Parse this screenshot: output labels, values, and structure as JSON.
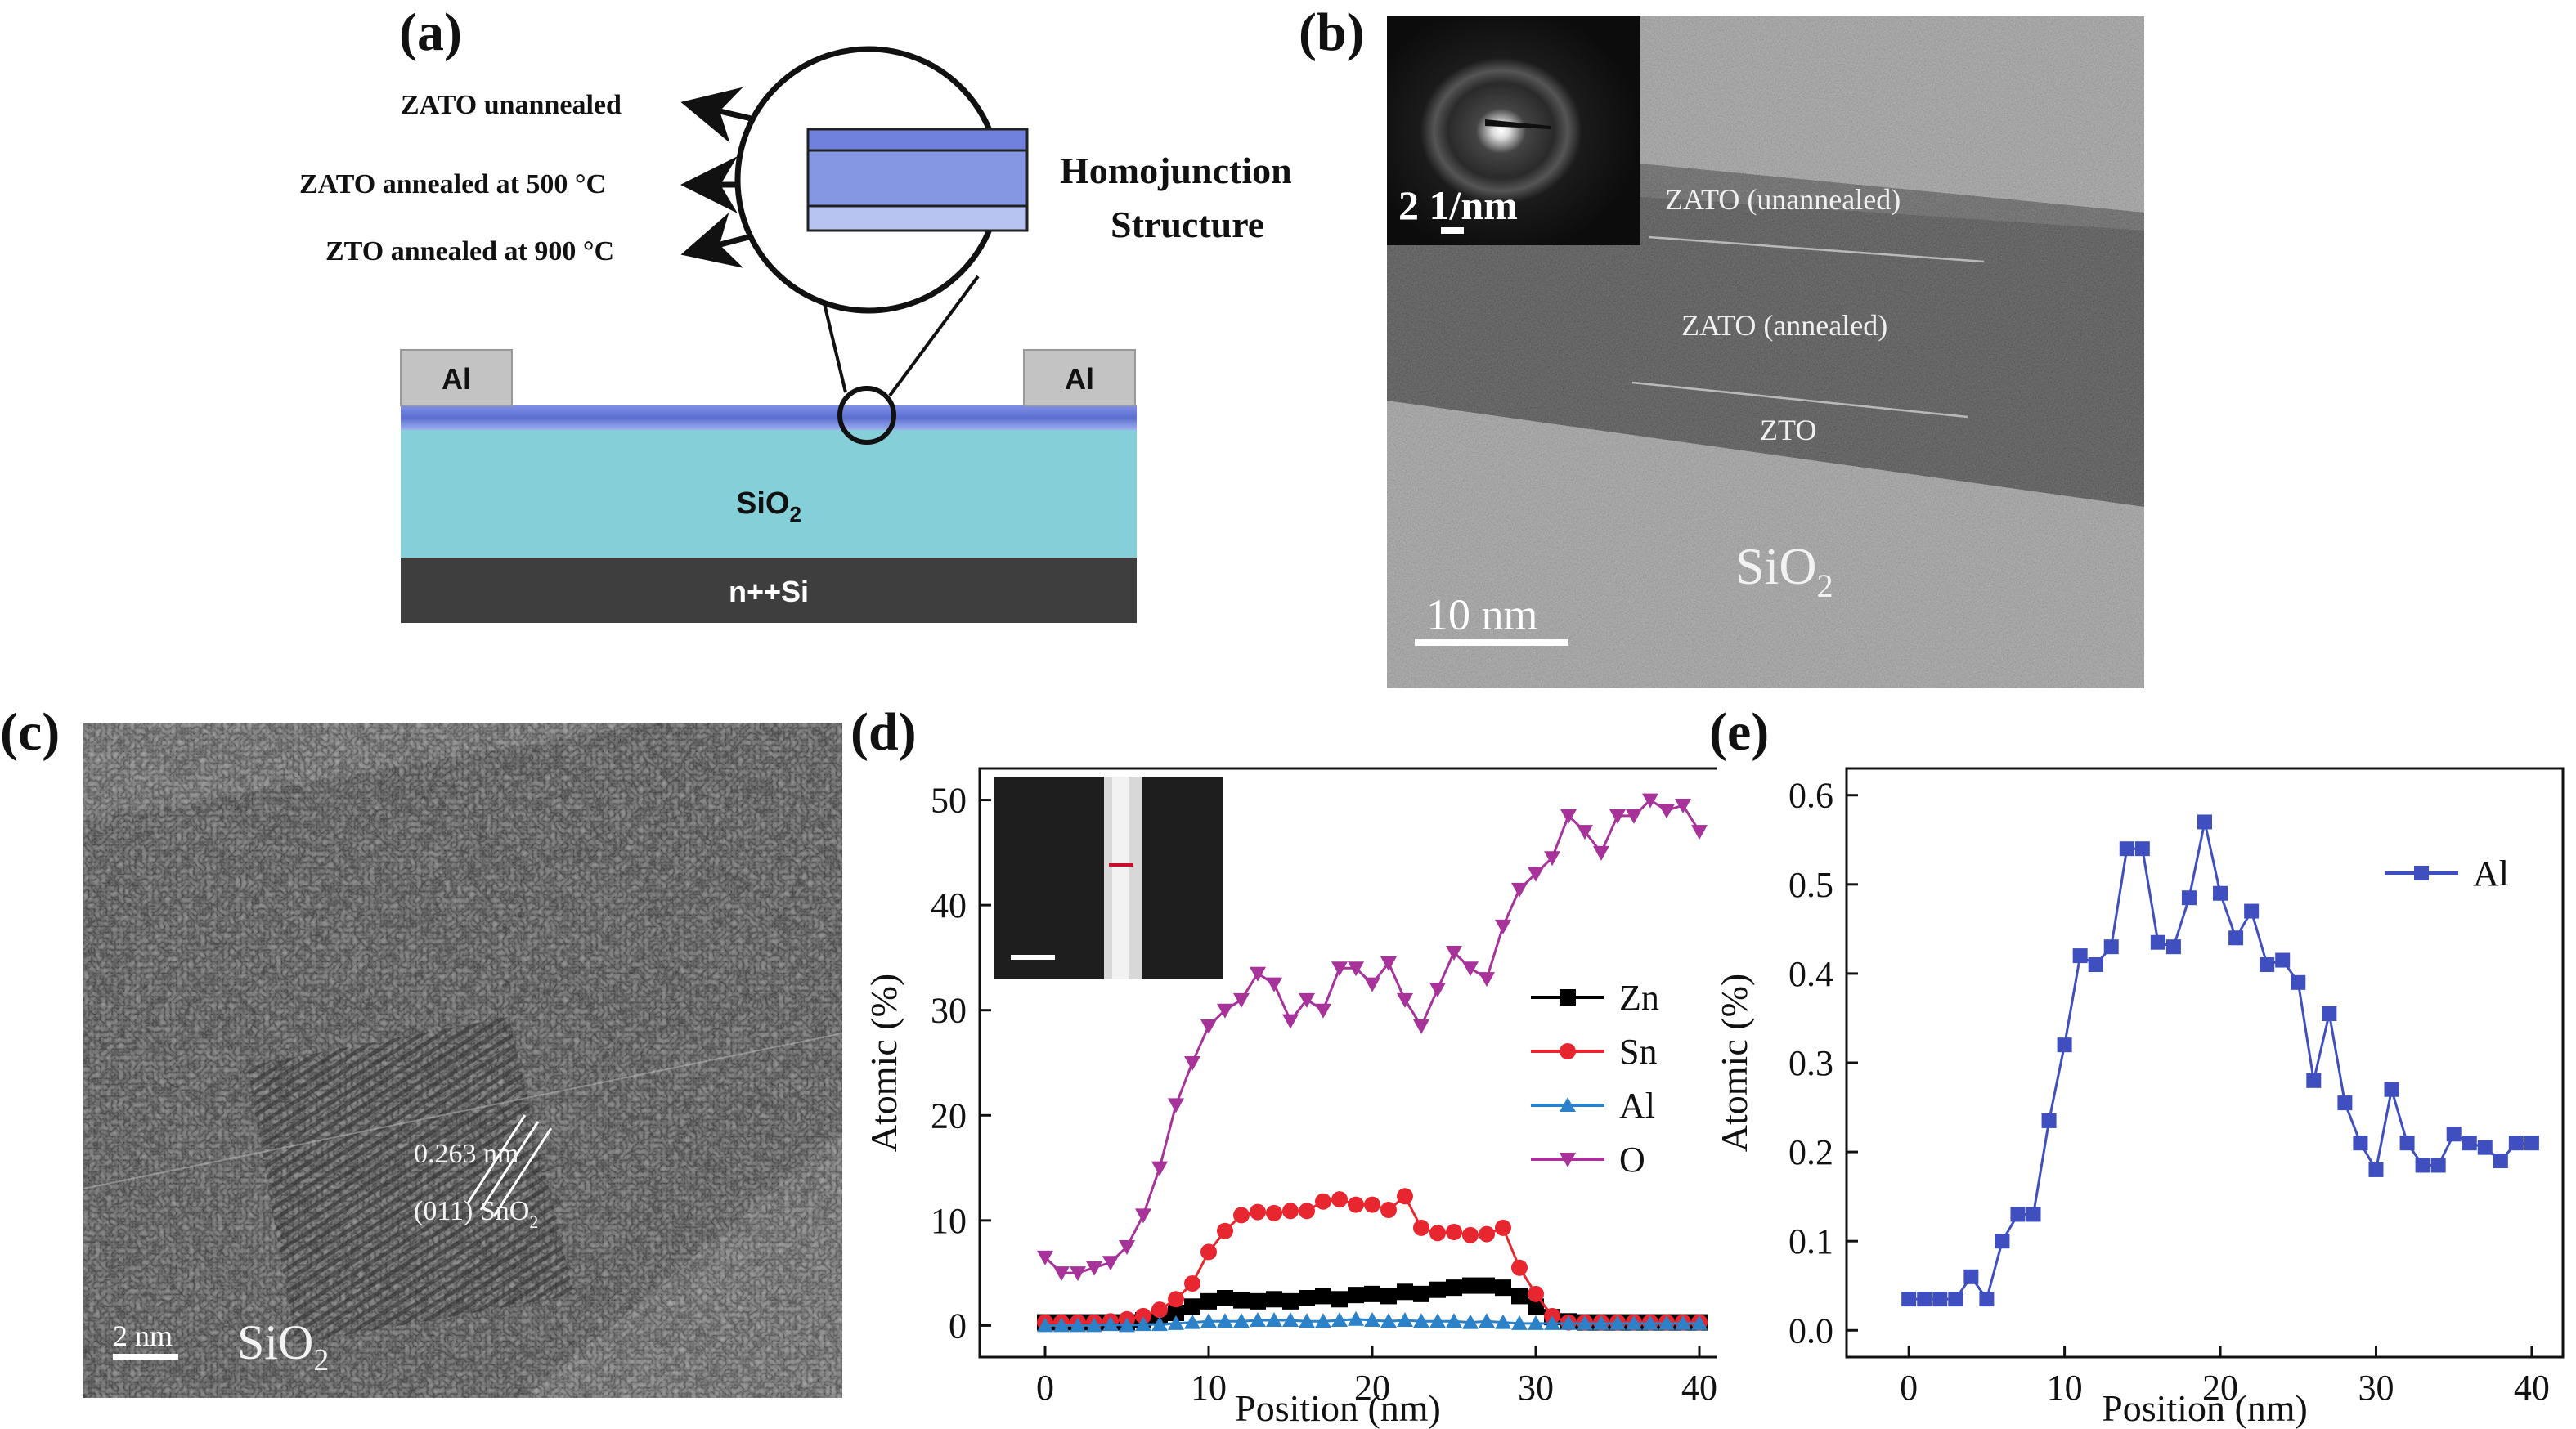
{
  "panel_labels": [
    "(a)",
    "(b)",
    "(c)",
    "(d)",
    "(e)"
  ],
  "panel_a": {
    "layer_labels": [
      "ZATO unannealed",
      "ZATO annealed at 500 °C",
      "ZTO annealed at 900 °C"
    ],
    "callout_line1": "Homojunction",
    "callout_line2": "Structure",
    "electrode_left": "Al",
    "electrode_right": "Al",
    "oxide_label": "SiO",
    "oxide_sub": "2",
    "substrate_label": "n++Si",
    "colors": {
      "oxide": "#85cfd8",
      "substrate": "#3e3e3e",
      "channel": "#5b6fd0",
      "electrode": "#c3c3c3"
    }
  },
  "panel_b": {
    "inset_scale": "2 1/nm",
    "layer_1": "ZATO  (unannealed)",
    "layer_2": "ZATO  (annealed)",
    "layer_3": "ZTO",
    "substrate": "SiO",
    "substrate_sub": "2",
    "scale_bar": "10  nm"
  },
  "panel_c": {
    "spacing_label": "0.263 nm",
    "plane_label": "(011) SnO",
    "plane_sub": "2",
    "scale_bar": "2 nm",
    "substrate": "SiO",
    "substrate_sub": "2"
  },
  "chart_data": [
    {
      "type": "line",
      "panel": "(d)",
      "xlabel": "Position (nm)",
      "ylabel": "Atomic (%)",
      "xlim": [
        -4,
        42
      ],
      "ylim": [
        -3,
        53
      ],
      "xticks": [
        0,
        10,
        20,
        30,
        40
      ],
      "yticks": [
        0,
        10,
        20,
        30,
        40,
        50
      ],
      "legend_position": "right",
      "x": [
        0,
        1,
        2,
        3,
        4,
        5,
        6,
        7,
        8,
        9,
        10,
        11,
        12,
        13,
        14,
        15,
        16,
        17,
        18,
        19,
        20,
        21,
        22,
        23,
        24,
        25,
        26,
        27,
        28,
        29,
        30,
        31,
        32,
        33,
        34,
        35,
        36,
        37,
        38,
        39,
        40
      ],
      "series": [
        {
          "name": "Zn",
          "color": "#000000",
          "marker": "square",
          "values": [
            0.3,
            0.3,
            0.3,
            0.3,
            0.3,
            0.3,
            0.5,
            0.8,
            1.2,
            1.8,
            2.3,
            2.6,
            2.4,
            2.3,
            2.5,
            2.3,
            2.6,
            2.8,
            2.5,
            2.9,
            3.0,
            2.8,
            3.2,
            3.0,
            3.4,
            3.6,
            3.8,
            3.8,
            3.6,
            2.8,
            1.8,
            0.8,
            0.4,
            0.3,
            0.3,
            0.3,
            0.3,
            0.3,
            0.3,
            0.3,
            0.3
          ]
        },
        {
          "name": "Sn",
          "color": "#e8262f",
          "marker": "circle",
          "values": [
            0.3,
            0.3,
            0.3,
            0.3,
            0.4,
            0.6,
            0.9,
            1.5,
            2.5,
            4.0,
            7.0,
            9.0,
            10.5,
            10.8,
            10.7,
            10.9,
            10.9,
            11.8,
            12.0,
            11.5,
            11.5,
            11.0,
            12.3,
            9.3,
            8.8,
            8.9,
            8.6,
            8.7,
            9.3,
            5.5,
            3.0,
            0.9,
            0.3,
            0.3,
            0.3,
            0.3,
            0.3,
            0.3,
            0.3,
            0.3,
            0.3
          ]
        },
        {
          "name": "Al",
          "color": "#2c82c9",
          "marker": "triangle-up",
          "values": [
            0.0,
            0.0,
            0.0,
            0.0,
            0.1,
            0.0,
            0.1,
            0.1,
            0.2,
            0.3,
            0.4,
            0.4,
            0.4,
            0.5,
            0.5,
            0.5,
            0.4,
            0.4,
            0.5,
            0.6,
            0.5,
            0.4,
            0.5,
            0.4,
            0.4,
            0.4,
            0.3,
            0.4,
            0.3,
            0.2,
            0.2,
            0.2,
            0.2,
            0.2,
            0.2,
            0.2,
            0.2,
            0.2,
            0.2,
            0.2,
            0.2
          ]
        },
        {
          "name": "O",
          "color": "#a6329a",
          "marker": "triangle-down",
          "values": [
            6.5,
            5.0,
            5.0,
            5.5,
            6.0,
            7.5,
            10.5,
            15.0,
            21.0,
            25.0,
            28.5,
            30.0,
            31.0,
            33.5,
            32.5,
            29.0,
            31.0,
            30.0,
            34.0,
            34.0,
            32.5,
            34.5,
            31.0,
            28.5,
            32.0,
            35.5,
            34.0,
            33.0,
            38.0,
            41.5,
            43.0,
            44.5,
            48.5,
            47.0,
            45.0,
            48.5,
            48.5,
            50.0,
            49.0,
            49.5,
            47.0
          ]
        }
      ],
      "inset_colors": {
        "background": "#1e1e1e",
        "bright_band": "#d8d8d8",
        "line_profile": "#c8102e"
      }
    },
    {
      "type": "line",
      "panel": "(e)",
      "xlabel": "Position (nm)",
      "ylabel": "Atomic (%)",
      "xlim": [
        -4,
        42
      ],
      "ylim": [
        -0.03,
        0.63
      ],
      "xticks": [
        0,
        10,
        20,
        30,
        40
      ],
      "yticks": [
        0.0,
        0.1,
        0.2,
        0.3,
        0.4,
        0.5,
        0.6
      ],
      "legend_position": "top-right",
      "x": [
        0,
        1,
        2,
        3,
        4,
        5,
        6,
        7,
        8,
        9,
        10,
        11,
        12,
        13,
        14,
        15,
        16,
        17,
        18,
        19,
        20,
        21,
        22,
        23,
        24,
        25,
        26,
        27,
        28,
        29,
        30,
        31,
        32,
        33,
        34,
        35,
        36,
        37,
        38,
        39,
        40
      ],
      "series": [
        {
          "name": "Al",
          "color": "#3f4fbf",
          "marker": "square",
          "values": [
            0.035,
            0.035,
            0.035,
            0.035,
            0.06,
            0.035,
            0.1,
            0.13,
            0.13,
            0.235,
            0.32,
            0.42,
            0.41,
            0.43,
            0.54,
            0.54,
            0.435,
            0.43,
            0.485,
            0.57,
            0.49,
            0.44,
            0.47,
            0.41,
            0.415,
            0.39,
            0.28,
            0.355,
            0.255,
            0.21,
            0.18,
            0.27,
            0.21,
            0.185,
            0.185,
            0.22,
            0.21,
            0.205,
            0.19,
            0.21,
            0.21
          ]
        }
      ]
    }
  ]
}
